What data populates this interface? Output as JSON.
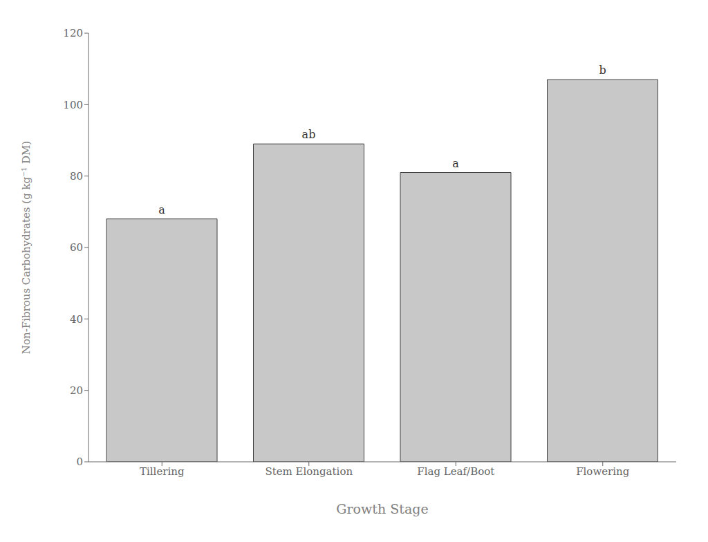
{
  "chart_data": {
    "type": "bar",
    "categories": [
      "Tillering",
      "Stem Elongation",
      "Flag Leaf/Boot",
      "Flowering"
    ],
    "values": [
      68,
      89,
      81,
      107
    ],
    "annotations": [
      "a",
      "ab",
      "a",
      "b"
    ],
    "color": "#c8c8c8",
    "xlabel": "Growth Stage",
    "ylabel": "Non-Fibrous Carbohydrates (g kg⁻¹ DM)",
    "ylim": [
      0,
      120
    ],
    "yticks": [
      0,
      20,
      40,
      60,
      80,
      100,
      120
    ],
    "grid": false
  }
}
